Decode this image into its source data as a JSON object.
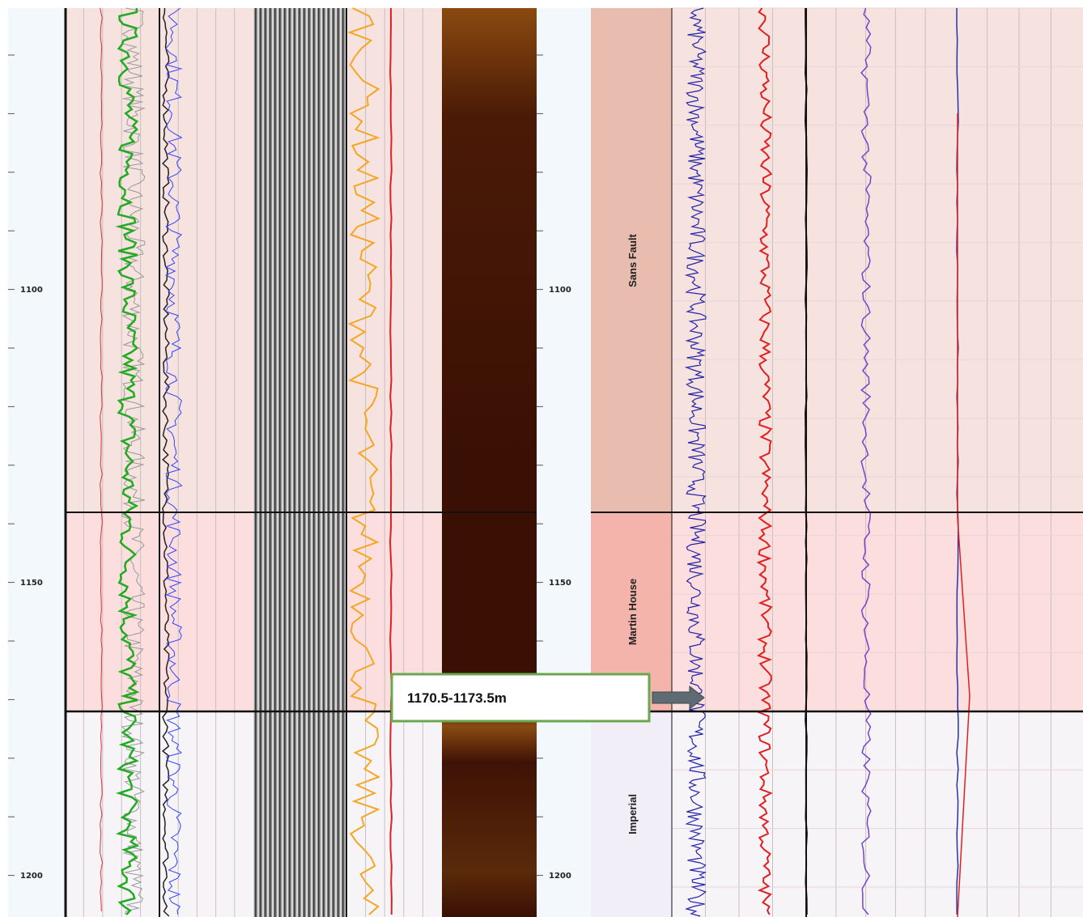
{
  "depth_track_left": {
    "labels": [
      "1100",
      "1150",
      "1200"
    ]
  },
  "depth_track_right": {
    "labels": [
      "1100",
      "1150",
      "1200"
    ]
  },
  "formations": [
    {
      "name": "Sans Fault"
    },
    {
      "name": "Martin House"
    },
    {
      "name": "Imperial"
    }
  ],
  "annotation": {
    "label": "1170.5-1173.5m"
  }
}
